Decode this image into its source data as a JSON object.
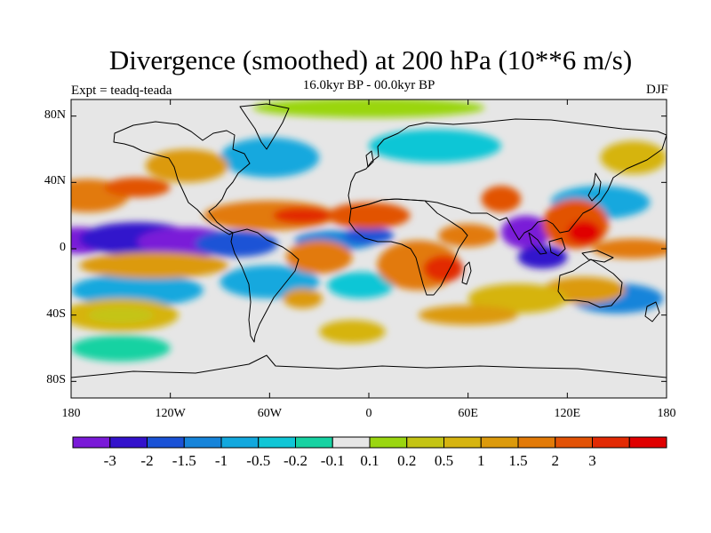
{
  "title": "Divergence (smoothed) at 200 hPa (10**6 m/s)",
  "subtitle": "16.0kyr BP - 00.0kyr BP",
  "experiment": "Expt = teadq-teada",
  "season": "DJF",
  "lat_labels": [
    "80N",
    "40N",
    "0",
    "40S",
    "80S"
  ],
  "lon_labels": [
    "180",
    "120W",
    "60W",
    "0",
    "60E",
    "120E",
    "180"
  ],
  "colorbar": {
    "colors": [
      "#7a1ad8",
      "#3312cc",
      "#1a52d6",
      "#1684da",
      "#12a8de",
      "#10c6d6",
      "#16d2a2",
      "#e6e6e6",
      "#9ad610",
      "#c4c414",
      "#d6b410",
      "#dc9a0c",
      "#e27a08",
      "#e25206",
      "#e22a04",
      "#e00000"
    ],
    "labels": [
      "-3",
      "-2",
      "-1.5",
      "-1",
      "-0.5",
      "-0.2",
      "-0.1",
      "0.1",
      "0.2",
      "0.5",
      "1",
      "1.5",
      "2",
      "3"
    ]
  },
  "field_blobs": [
    {
      "lon": -175,
      "lat": 5,
      "rx": 20,
      "ry": 8,
      "level": 0
    },
    {
      "lon": -140,
      "lat": 6,
      "rx": 35,
      "ry": 10,
      "level": 1
    },
    {
      "lon": -110,
      "lat": 4,
      "rx": 30,
      "ry": 9,
      "level": 0
    },
    {
      "lon": -80,
      "lat": 3,
      "rx": 25,
      "ry": 8,
      "level": 2
    },
    {
      "lon": -20,
      "lat": 5,
      "rx": 25,
      "ry": 6,
      "level": 3
    },
    {
      "lon": 0,
      "lat": 8,
      "rx": 15,
      "ry": 5,
      "level": 2
    },
    {
      "lon": 95,
      "lat": 10,
      "rx": 15,
      "ry": 10,
      "level": 0
    },
    {
      "lon": 105,
      "lat": -5,
      "rx": 15,
      "ry": 7,
      "level": 1
    },
    {
      "lon": 140,
      "lat": 28,
      "rx": 30,
      "ry": 10,
      "level": 4
    },
    {
      "lon": 150,
      "lat": -30,
      "rx": 28,
      "ry": 9,
      "level": 3
    },
    {
      "lon": -60,
      "lat": 55,
      "rx": 30,
      "ry": 12,
      "level": 4
    },
    {
      "lon": 40,
      "lat": 62,
      "rx": 40,
      "ry": 10,
      "level": 5
    },
    {
      "lon": -140,
      "lat": -25,
      "rx": 40,
      "ry": 10,
      "level": 4
    },
    {
      "lon": -60,
      "lat": -20,
      "rx": 30,
      "ry": 10,
      "level": 4
    },
    {
      "lon": -5,
      "lat": -22,
      "rx": 20,
      "ry": 8,
      "level": 5
    },
    {
      "lon": -150,
      "lat": -60,
      "rx": 30,
      "ry": 8,
      "level": 6
    },
    {
      "lon": -170,
      "lat": 32,
      "rx": 25,
      "ry": 10,
      "level": 12
    },
    {
      "lon": -140,
      "lat": 37,
      "rx": 20,
      "ry": 6,
      "level": 13
    },
    {
      "lon": -130,
      "lat": -10,
      "rx": 45,
      "ry": 8,
      "level": 11
    },
    {
      "lon": -150,
      "lat": -40,
      "rx": 35,
      "ry": 10,
      "level": 10
    },
    {
      "lon": -150,
      "lat": -40,
      "rx": 20,
      "ry": 5,
      "level": 9
    },
    {
      "lon": -60,
      "lat": 20,
      "rx": 40,
      "ry": 9,
      "level": 12
    },
    {
      "lon": -40,
      "lat": 20,
      "rx": 18,
      "ry": 5,
      "level": 14
    },
    {
      "lon": -30,
      "lat": -5,
      "rx": 20,
      "ry": 10,
      "level": 12
    },
    {
      "lon": -40,
      "lat": -30,
      "rx": 12,
      "ry": 6,
      "level": 11
    },
    {
      "lon": 0,
      "lat": 20,
      "rx": 25,
      "ry": 8,
      "level": 13
    },
    {
      "lon": -110,
      "lat": 50,
      "rx": 25,
      "ry": 10,
      "level": 11
    },
    {
      "lon": 30,
      "lat": -10,
      "rx": 25,
      "ry": 15,
      "level": 12
    },
    {
      "lon": 45,
      "lat": -12,
      "rx": 12,
      "ry": 8,
      "level": 14
    },
    {
      "lon": 60,
      "lat": 8,
      "rx": 18,
      "ry": 7,
      "level": 12
    },
    {
      "lon": 80,
      "lat": 30,
      "rx": 12,
      "ry": 8,
      "level": 13
    },
    {
      "lon": 125,
      "lat": 15,
      "rx": 20,
      "ry": 15,
      "level": 13
    },
    {
      "lon": 130,
      "lat": 10,
      "rx": 10,
      "ry": 7,
      "level": 15
    },
    {
      "lon": 130,
      "lat": -25,
      "rx": 25,
      "ry": 8,
      "level": 11
    },
    {
      "lon": 90,
      "lat": -30,
      "rx": 30,
      "ry": 9,
      "level": 10
    },
    {
      "lon": 60,
      "lat": -40,
      "rx": 30,
      "ry": 6,
      "level": 11
    },
    {
      "lon": 160,
      "lat": 0,
      "rx": 25,
      "ry": 6,
      "level": 12
    },
    {
      "lon": 160,
      "lat": 55,
      "rx": 20,
      "ry": 10,
      "level": 10
    },
    {
      "lon": -10,
      "lat": -50,
      "rx": 20,
      "ry": 7,
      "level": 10
    },
    {
      "lon": 0,
      "lat": 85,
      "rx": 70,
      "ry": 6,
      "level": 8
    }
  ]
}
